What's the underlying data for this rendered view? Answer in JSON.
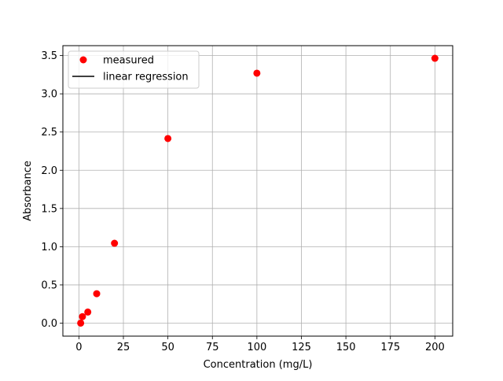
{
  "chart_data": {
    "type": "scatter",
    "title": "",
    "xlabel": "Concentration (mg/L)",
    "ylabel": "Absorbance",
    "xlim": [
      -9,
      210
    ],
    "ylim": [
      -0.17,
      3.63
    ],
    "xticks": [
      0,
      25,
      50,
      75,
      100,
      125,
      150,
      175,
      200
    ],
    "xtick_labels": [
      "0",
      "25",
      "50",
      "75",
      "100",
      "125",
      "150",
      "175",
      "200"
    ],
    "yticks": [
      0.0,
      0.5,
      1.0,
      1.5,
      2.0,
      2.5,
      3.0,
      3.5
    ],
    "ytick_labels": [
      "0.0",
      "0.5",
      "1.0",
      "1.5",
      "2.0",
      "2.5",
      "3.0",
      "3.5"
    ],
    "grid": true,
    "legend_position": "top-left",
    "series": [
      {
        "name": "measured",
        "kind": "points",
        "color": "#ff0000",
        "x": [
          1,
          2,
          5,
          10,
          20,
          50,
          100,
          200
        ],
        "y": [
          0.0,
          0.085,
          0.145,
          0.385,
          1.045,
          2.415,
          3.27,
          3.465
        ]
      },
      {
        "name": "linear regression",
        "kind": "line",
        "color": "#000000",
        "x": [],
        "y": []
      }
    ]
  }
}
